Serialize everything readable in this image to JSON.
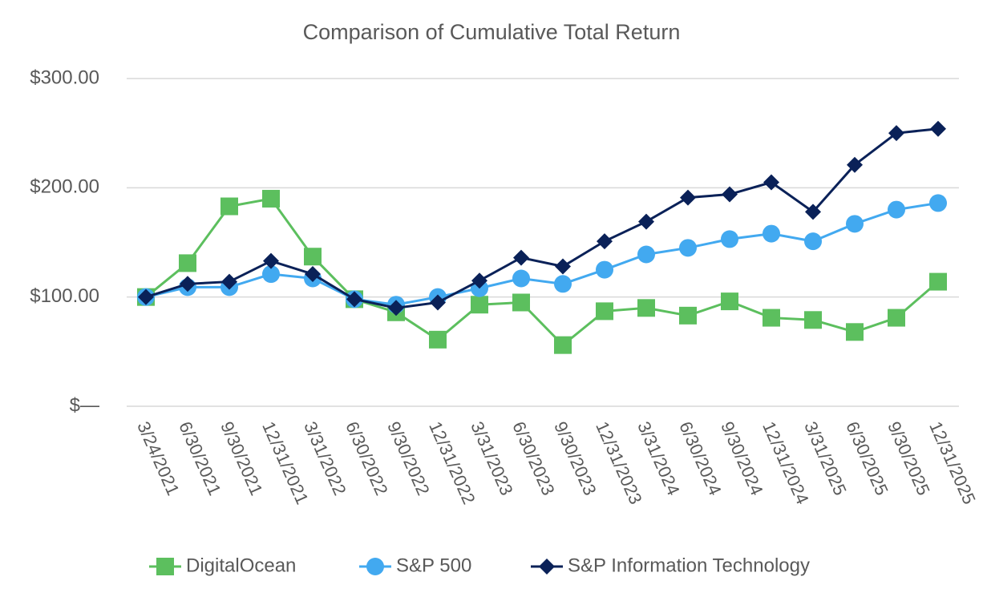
{
  "chart_data": {
    "type": "line",
    "title": "Comparison of Cumulative Total Return",
    "categories": [
      "3/24/2021",
      "6/30/2021",
      "9/30/2021",
      "12/31/2021",
      "3/31/2022",
      "6/30/2022",
      "9/30/2022",
      "12/31/2022",
      "3/31/2023",
      "6/30/2023",
      "9/30/2023",
      "12/31/2023",
      "3/31/2024",
      "6/30/2024",
      "9/30/2024",
      "12/31/2024",
      "3/31/2025",
      "6/30/2025",
      "9/30/2025",
      "12/31/2025"
    ],
    "series": [
      {
        "name": "DigitalOcean",
        "color": "#5cbf5e",
        "marker": "square",
        "values": [
          100,
          131,
          183,
          190,
          137,
          98,
          86,
          61,
          93,
          95,
          56,
          87,
          90,
          83,
          96,
          81,
          79,
          68,
          81,
          114
        ]
      },
      {
        "name": "S&P 500",
        "color": "#42a9f0",
        "marker": "circle",
        "values": [
          100,
          109,
          109,
          121,
          117,
          98,
          93,
          100,
          108,
          117,
          112,
          125,
          139,
          145,
          153,
          158,
          151,
          167,
          180,
          186
        ]
      },
      {
        "name": "S&P Information Technology",
        "color": "#0a2158",
        "marker": "diamond",
        "values": [
          100,
          112,
          114,
          133,
          121,
          98,
          90,
          95,
          115,
          136,
          128,
          151,
          169,
          191,
          194,
          205,
          178,
          221,
          250,
          254
        ]
      }
    ],
    "ylim": [
      0,
      300
    ],
    "yticks": [
      {
        "value": 0,
        "label": "$—"
      },
      {
        "value": 100,
        "label": "$100.00"
      },
      {
        "value": 200,
        "label": "$200.00"
      },
      {
        "value": 300,
        "label": "$300.00"
      }
    ],
    "grid": true,
    "legend": "bottom"
  }
}
